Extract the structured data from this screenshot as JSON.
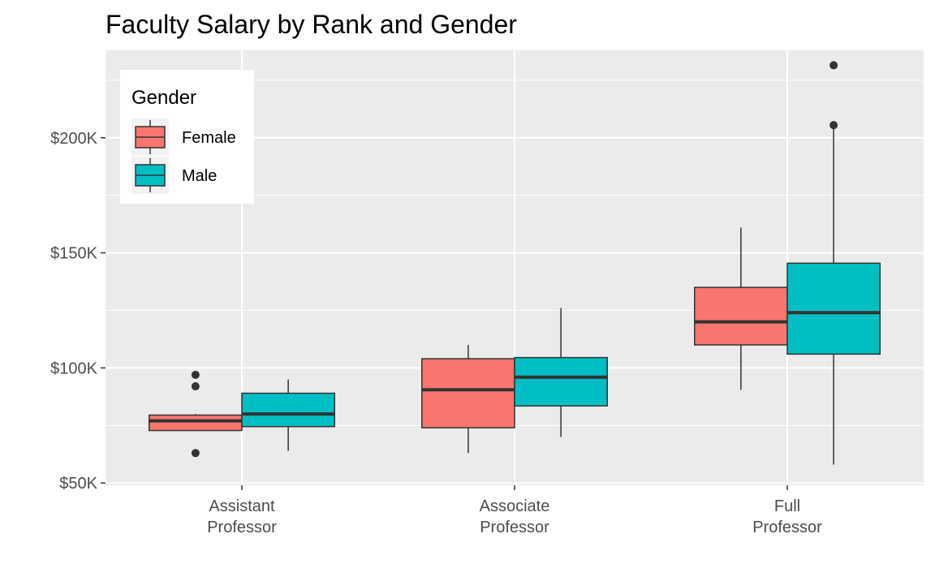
{
  "chart_data": {
    "type": "boxplot",
    "title": "Faculty Salary by Rank and Gender",
    "xlabel": "",
    "ylabel": "",
    "categories": [
      [
        "Assistant",
        "Professor"
      ],
      [
        "Associate",
        "Professor"
      ],
      [
        "Full",
        "Professor"
      ]
    ],
    "yticks": [
      50000,
      100000,
      150000,
      200000
    ],
    "ytick_labels": [
      "$50K",
      "$100K",
      "$150K",
      "$200K"
    ],
    "ylim": [
      49000,
      238000
    ],
    "grid": true,
    "legend": {
      "title": "Gender",
      "position": "top-left"
    },
    "series": [
      {
        "name": "Female",
        "color": "#F8766D",
        "boxes": [
          {
            "category": 0,
            "whisker_low": 72800,
            "q1": 72800,
            "median": 77000,
            "q3": 79500,
            "whisker_high": 80000,
            "outliers": [
              63000,
              92000,
              97000
            ]
          },
          {
            "category": 1,
            "whisker_low": 63000,
            "q1": 74000,
            "median": 90500,
            "q3": 104000,
            "whisker_high": 110000,
            "outliers": []
          },
          {
            "category": 2,
            "whisker_low": 90500,
            "q1": 110000,
            "median": 120000,
            "q3": 135000,
            "whisker_high": 161000,
            "outliers": []
          }
        ]
      },
      {
        "name": "Male",
        "color": "#00BFC4",
        "boxes": [
          {
            "category": 0,
            "whisker_low": 64000,
            "q1": 74500,
            "median": 80000,
            "q3": 89000,
            "whisker_high": 95000,
            "outliers": []
          },
          {
            "category": 1,
            "whisker_low": 70000,
            "q1": 83500,
            "median": 96000,
            "q3": 104500,
            "whisker_high": 126000,
            "outliers": []
          },
          {
            "category": 2,
            "whisker_low": 58000,
            "q1": 106000,
            "median": 124000,
            "q3": 145500,
            "whisker_high": 205000,
            "outliers": [
              205500,
              231500
            ]
          }
        ]
      }
    ]
  }
}
